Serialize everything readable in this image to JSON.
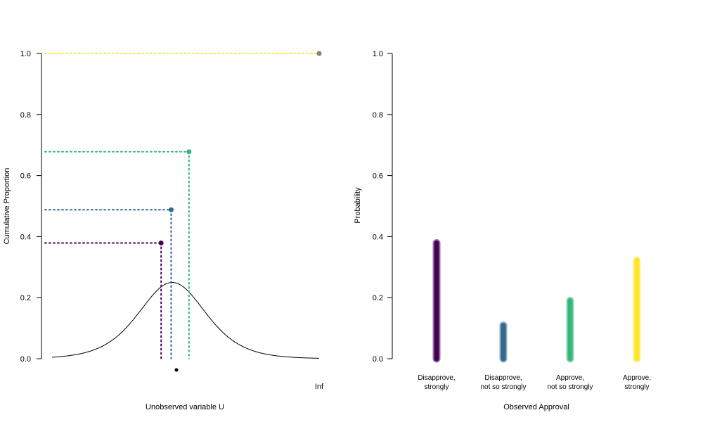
{
  "chart_data": [
    {
      "type": "line",
      "xlabel": "Unobserved variable U",
      "ylabel": "Cumulative Proportion",
      "ylim": [
        0,
        1.0
      ],
      "yticks": [
        "0.0",
        "0.2",
        "0.4",
        "0.6",
        "0.8",
        "1.0"
      ],
      "x_tick_label": "Inf",
      "density_curve": "logistic density, peak value 0.25 at threshold center",
      "cutpoints": [
        {
          "cumulative": 0.379,
          "color": "#440154"
        },
        {
          "cumulative": 0.488,
          "color": "#31688e"
        },
        {
          "cumulative": 0.678,
          "color": "#35b779"
        },
        {
          "cumulative": 1.0,
          "color": "#fde725",
          "point_color": "#808080"
        }
      ],
      "mean_marker": "black dot below axis at center"
    },
    {
      "type": "bar",
      "xlabel": "Observed Approval",
      "ylabel": "Probability",
      "ylim": [
        0,
        1.0
      ],
      "yticks": [
        "0.0",
        "0.2",
        "0.4",
        "0.6",
        "0.8",
        "1.0"
      ],
      "categories": [
        [
          "Disapprove,",
          "strongly"
        ],
        [
          "Disapprove,",
          "not so strongly"
        ],
        [
          "Approve,",
          "not so strongly"
        ],
        [
          "Approve,",
          "strongly"
        ]
      ],
      "values": [
        0.379,
        0.109,
        0.19,
        0.322
      ],
      "colors": [
        "#440154",
        "#31688e",
        "#35b779",
        "#fde725"
      ]
    }
  ]
}
